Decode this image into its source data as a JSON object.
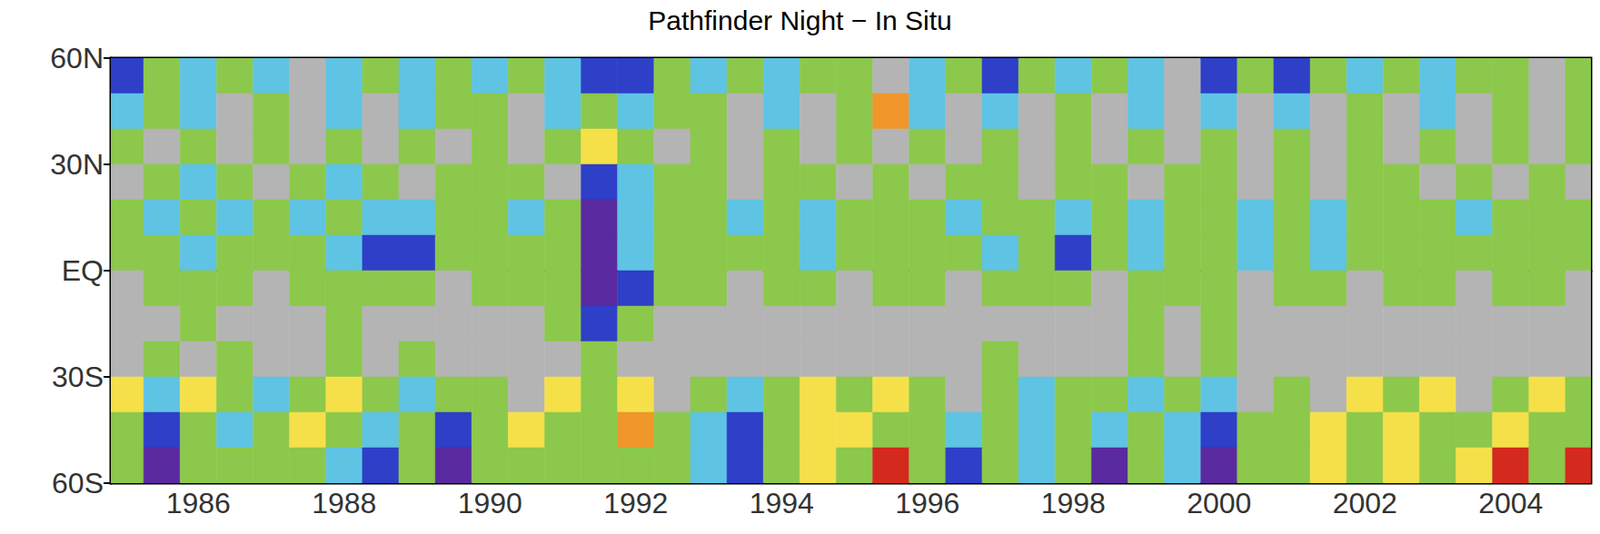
{
  "chart_data": {
    "type": "heatmap",
    "title": "Pathfinder Night − In Situ",
    "x": [
      1985,
      1985.5,
      1986,
      1986.5,
      1987,
      1987.5,
      1988,
      1988.5,
      1989,
      1989.5,
      1990,
      1990.5,
      1991,
      1991.5,
      1992,
      1992.5,
      1993,
      1993.5,
      1994,
      1994.5,
      1995,
      1995.5,
      1996,
      1996.5,
      1997,
      1997.5,
      1998,
      1998.5,
      1999,
      1999.5,
      2000,
      2000.5,
      2001,
      2001.5,
      2002,
      2002.5,
      2003,
      2003.5,
      2004,
      2004.5,
      2005
    ],
    "y": [
      55,
      45,
      35,
      25,
      15,
      5,
      -5,
      -15,
      -25,
      -35,
      -45,
      -55
    ],
    "values": [
      [
        -0.5,
        -0.15,
        -0.3,
        -0.15,
        -0.3,
        0,
        -0.3,
        -0.15,
        -0.3,
        -0.15,
        -0.3,
        -0.15,
        -0.3,
        -0.5,
        -0.5,
        -0.15,
        -0.3,
        -0.15,
        -0.3,
        -0.15,
        -0.15,
        0,
        -0.3,
        -0.15,
        -0.5,
        -0.15,
        -0.3,
        -0.15,
        -0.3,
        0,
        -0.5,
        -0.15,
        -0.5,
        -0.15,
        -0.3,
        -0.15,
        -0.3,
        -0.15,
        -0.15,
        0,
        -0.15
      ],
      [
        -0.3,
        -0.15,
        -0.3,
        0,
        -0.15,
        0,
        -0.3,
        0,
        -0.3,
        -0.15,
        -0.15,
        0,
        -0.3,
        -0.15,
        -0.3,
        -0.15,
        -0.15,
        0,
        -0.3,
        0,
        -0.15,
        0.3,
        -0.3,
        0,
        -0.3,
        0,
        -0.15,
        0,
        -0.3,
        0,
        -0.3,
        0,
        -0.3,
        0,
        -0.15,
        0,
        -0.3,
        0,
        -0.15,
        0,
        -0.15
      ],
      [
        -0.15,
        0,
        -0.15,
        0,
        -0.15,
        0,
        -0.15,
        0,
        -0.15,
        0,
        -0.15,
        0,
        -0.15,
        0.15,
        -0.15,
        0,
        -0.15,
        0,
        -0.15,
        0,
        -0.15,
        0,
        -0.15,
        0,
        -0.15,
        0,
        -0.15,
        0,
        -0.15,
        0,
        -0.15,
        0,
        -0.15,
        0,
        -0.15,
        0,
        -0.15,
        0,
        -0.15,
        0,
        -0.15
      ],
      [
        0,
        -0.15,
        -0.3,
        -0.15,
        0,
        -0.15,
        -0.3,
        -0.15,
        0,
        -0.15,
        -0.15,
        -0.15,
        0,
        -0.5,
        -0.3,
        -0.15,
        -0.15,
        0,
        -0.15,
        -0.15,
        0,
        -0.15,
        0,
        -0.15,
        -0.15,
        0,
        -0.15,
        -0.15,
        0,
        -0.15,
        -0.15,
        0,
        -0.15,
        0,
        -0.15,
        -0.15,
        0,
        -0.15,
        0,
        -0.15,
        0
      ],
      [
        -0.15,
        -0.3,
        -0.15,
        -0.3,
        -0.15,
        -0.3,
        -0.15,
        -0.3,
        -0.3,
        -0.15,
        -0.15,
        -0.3,
        -0.15,
        -0.8,
        -0.3,
        -0.15,
        -0.15,
        -0.3,
        -0.15,
        -0.3,
        -0.15,
        -0.15,
        -0.15,
        -0.3,
        -0.15,
        -0.15,
        -0.3,
        -0.15,
        -0.3,
        -0.15,
        -0.15,
        -0.3,
        -0.15,
        -0.3,
        -0.15,
        -0.15,
        -0.15,
        -0.3,
        -0.15,
        -0.15,
        -0.15
      ],
      [
        -0.15,
        -0.15,
        -0.3,
        -0.15,
        -0.15,
        -0.15,
        -0.3,
        -0.5,
        -0.5,
        -0.15,
        -0.15,
        -0.15,
        -0.15,
        -0.8,
        -0.3,
        -0.15,
        -0.15,
        -0.15,
        -0.15,
        -0.3,
        -0.15,
        -0.15,
        -0.15,
        -0.15,
        -0.3,
        -0.15,
        -0.5,
        -0.15,
        -0.3,
        -0.15,
        -0.15,
        -0.3,
        -0.15,
        -0.3,
        -0.15,
        -0.15,
        -0.15,
        -0.15,
        -0.15,
        -0.15,
        -0.15
      ],
      [
        0,
        -0.15,
        -0.15,
        -0.15,
        0,
        -0.15,
        -0.15,
        -0.15,
        -0.15,
        0,
        -0.15,
        -0.15,
        -0.15,
        -0.8,
        -0.5,
        -0.15,
        -0.15,
        0,
        -0.15,
        -0.15,
        0,
        -0.15,
        -0.15,
        0,
        -0.15,
        -0.15,
        -0.15,
        0,
        -0.15,
        -0.15,
        -0.15,
        0,
        -0.15,
        -0.15,
        0,
        -0.15,
        -0.15,
        0,
        -0.15,
        -0.15,
        0
      ],
      [
        0,
        0,
        -0.15,
        0,
        0,
        0,
        -0.15,
        0,
        0,
        0,
        0,
        0,
        -0.15,
        -0.5,
        -0.15,
        0,
        0,
        0,
        0,
        0,
        0,
        0,
        0,
        0,
        0,
        0,
        0,
        0,
        -0.15,
        0,
        -0.15,
        0,
        0,
        0,
        0,
        0,
        0,
        0,
        0,
        0,
        0
      ],
      [
        0,
        -0.15,
        0,
        -0.15,
        0,
        0,
        -0.15,
        0,
        -0.15,
        0,
        0,
        0,
        0,
        -0.15,
        0,
        0,
        0,
        0,
        0,
        0,
        0,
        0,
        0,
        0,
        -0.15,
        0,
        0,
        0,
        -0.15,
        0,
        -0.15,
        0,
        0,
        0,
        0,
        0,
        0,
        0,
        0,
        0,
        0
      ],
      [
        0.15,
        -0.3,
        0.15,
        -0.15,
        -0.3,
        -0.15,
        0.15,
        -0.15,
        -0.3,
        -0.15,
        -0.15,
        0,
        0.15,
        -0.15,
        0.15,
        0,
        -0.15,
        -0.3,
        -0.15,
        0.15,
        -0.15,
        0.15,
        -0.15,
        0,
        -0.15,
        -0.3,
        -0.15,
        -0.15,
        -0.3,
        -0.15,
        -0.3,
        0,
        -0.15,
        0,
        0.15,
        -0.15,
        0.15,
        0,
        -0.15,
        0.15,
        -0.15
      ],
      [
        -0.15,
        -0.5,
        -0.15,
        -0.3,
        -0.15,
        0.15,
        -0.15,
        -0.3,
        -0.15,
        -0.5,
        -0.15,
        0.15,
        -0.15,
        -0.15,
        0.3,
        -0.15,
        -0.3,
        -0.5,
        -0.15,
        0.15,
        0.15,
        -0.15,
        -0.15,
        -0.3,
        -0.15,
        -0.3,
        -0.15,
        -0.3,
        -0.15,
        -0.3,
        -0.5,
        -0.15,
        -0.15,
        0.15,
        -0.15,
        0.15,
        -0.15,
        -0.15,
        0.15,
        -0.15,
        -0.15
      ],
      [
        -0.15,
        -0.8,
        -0.15,
        -0.15,
        -0.15,
        -0.15,
        -0.3,
        -0.5,
        -0.15,
        -0.8,
        -0.15,
        -0.15,
        -0.15,
        -0.15,
        -0.15,
        -0.15,
        -0.3,
        -0.5,
        -0.15,
        0.15,
        -0.15,
        0.5,
        -0.15,
        -0.5,
        -0.15,
        -0.3,
        -0.15,
        -0.8,
        -0.15,
        -0.3,
        -0.8,
        -0.15,
        -0.15,
        0.15,
        -0.15,
        0.15,
        -0.15,
        0.15,
        0.5,
        -0.15,
        0.5
      ]
    ],
    "levels": [
      -1,
      -0.6,
      -0.4,
      -0.2,
      -0.1,
      0.1,
      0.2,
      0.4,
      1
    ],
    "colors": [
      "#5a2aa0",
      "#2e3fc8",
      "#5fc3e4",
      "#8cc84b",
      "#b4b4b4",
      "#f5e04a",
      "#f0962a",
      "#d42a1e"
    ],
    "xlim": [
      1984.8,
      2005.1
    ],
    "xticks": [
      1986,
      1988,
      1990,
      1992,
      1994,
      1996,
      1998,
      2000,
      2002,
      2004
    ],
    "ylim": [
      -60,
      60
    ],
    "yticks": [
      {
        "value": -60,
        "label": "60S"
      },
      {
        "value": -30,
        "label": "30S"
      },
      {
        "value": 0,
        "label": "EQ"
      },
      {
        "value": 30,
        "label": "30N"
      },
      {
        "value": 60,
        "label": "60N"
      }
    ]
  }
}
